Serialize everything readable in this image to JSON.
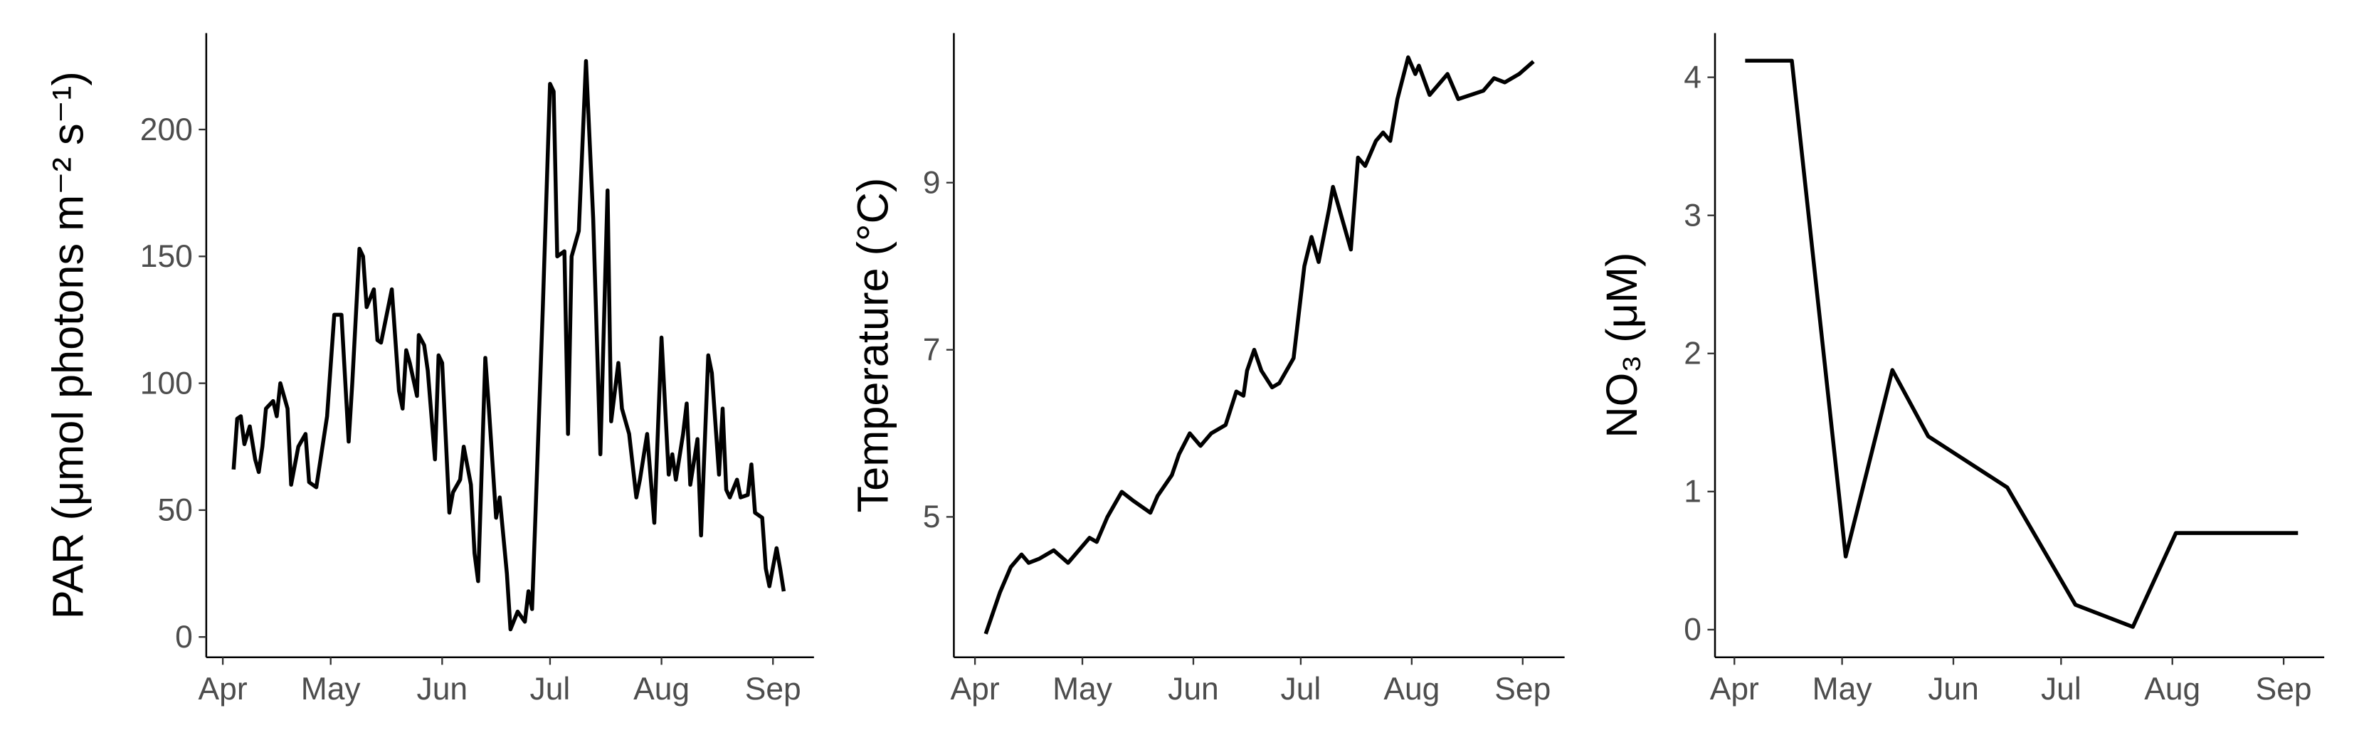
{
  "chart_data": [
    {
      "type": "line",
      "y_label": "PAR (μmol photons m⁻² s⁻¹)",
      "color": "#000000",
      "x": [
        3,
        4,
        5,
        6,
        7.5,
        9,
        10,
        11,
        12,
        14,
        15,
        16,
        18,
        19,
        21,
        23,
        24,
        26,
        29,
        31,
        33,
        35,
        36,
        38,
        39,
        40,
        42,
        43,
        44,
        46,
        47,
        49,
        50,
        51,
        52,
        54,
        54.5,
        56,
        57,
        59,
        60,
        61,
        63,
        64,
        66,
        67,
        69,
        70,
        71,
        73,
        74,
        76,
        77,
        79,
        80,
        82,
        84,
        85,
        86,
        87,
        89,
        91,
        92,
        93,
        95,
        96,
        97,
        99,
        101,
        103,
        105,
        107,
        108,
        110,
        111,
        113,
        115,
        116,
        118,
        120,
        122,
        124,
        125,
        126,
        128,
        129,
        130,
        132,
        133,
        135,
        136,
        138,
        139,
        140,
        141,
        143,
        144,
        146,
        147,
        148,
        150,
        151,
        152,
        154,
        155,
        156
      ],
      "values": [
        66,
        86,
        87,
        76,
        83,
        70,
        65,
        75,
        90,
        93,
        87,
        100,
        90,
        60,
        75,
        80,
        61,
        59,
        87,
        127,
        127,
        77,
        100,
        153,
        150,
        130,
        137,
        117,
        116,
        130,
        137,
        97,
        90,
        113,
        108,
        95,
        119,
        115,
        105,
        70,
        111,
        108,
        49,
        57,
        62,
        75,
        60,
        33,
        22,
        110,
        90,
        47,
        55,
        25,
        3,
        10,
        6,
        18,
        11,
        50,
        130,
        218,
        215,
        150,
        152,
        80,
        150,
        160,
        227,
        165,
        72,
        176,
        85,
        108,
        90,
        80,
        55,
        62,
        80,
        45,
        118,
        64,
        72,
        62,
        80,
        92,
        60,
        78,
        40,
        111,
        104,
        64,
        90,
        58,
        55,
        62,
        55,
        56,
        68,
        49,
        47,
        27,
        20,
        35,
        27,
        18
      ],
      "xlim": [
        -4.6,
        164.4
      ],
      "xticks": [
        {
          "value": 0,
          "label": "Apr"
        },
        {
          "value": 30,
          "label": "May"
        },
        {
          "value": 61,
          "label": "Jun"
        },
        {
          "value": 91,
          "label": "Jul"
        },
        {
          "value": 122,
          "label": "Aug"
        },
        {
          "value": 153,
          "label": "Sep"
        }
      ],
      "ylim": [
        -8,
        238
      ],
      "yticks": [
        0,
        50,
        100,
        150,
        200
      ]
    },
    {
      "type": "line",
      "y_label": "Temperature (°C)",
      "color": "#000000",
      "x": [
        3,
        7,
        10,
        13,
        15,
        18,
        22,
        26,
        29,
        32,
        34,
        37,
        41,
        44,
        49,
        51,
        55,
        57,
        60,
        63,
        66,
        70,
        73,
        75,
        76,
        78,
        80,
        83,
        85,
        89,
        92,
        94,
        96,
        99,
        100,
        102,
        105,
        107,
        109,
        112,
        114,
        116,
        118,
        121,
        123,
        124,
        127,
        130,
        132,
        135,
        142,
        145,
        148,
        152,
        156
      ],
      "values": [
        3.6,
        4.1,
        4.4,
        4.55,
        4.45,
        4.5,
        4.6,
        4.45,
        4.6,
        4.75,
        4.7,
        5.0,
        5.3,
        5.2,
        5.05,
        5.25,
        5.5,
        5.75,
        6.0,
        5.85,
        6.0,
        6.1,
        6.5,
        6.45,
        6.75,
        7.0,
        6.75,
        6.55,
        6.6,
        6.9,
        8.0,
        8.35,
        8.05,
        8.7,
        8.95,
        8.65,
        8.2,
        9.3,
        9.2,
        9.5,
        9.6,
        9.5,
        10.0,
        10.5,
        10.3,
        10.4,
        10.05,
        10.2,
        10.3,
        10.0,
        10.1,
        10.25,
        10.2,
        10.3,
        10.45
      ],
      "xlim": [
        -5.9,
        164.7
      ],
      "xticks": [
        {
          "value": 0,
          "label": "Apr"
        },
        {
          "value": 30,
          "label": "May"
        },
        {
          "value": 61,
          "label": "Jun"
        },
        {
          "value": 91,
          "label": "Jul"
        },
        {
          "value": 122,
          "label": "Aug"
        },
        {
          "value": 153,
          "label": "Sep"
        }
      ],
      "ylim": [
        3.32,
        10.79
      ],
      "yticks": [
        5,
        7,
        9
      ]
    },
    {
      "type": "line",
      "y_label": "NO₃ (μM)",
      "color": "#000000",
      "x": [
        3,
        16,
        31,
        44,
        54,
        76,
        95,
        111,
        123,
        157
      ],
      "values": [
        4.12,
        4.12,
        0.53,
        1.88,
        1.4,
        1.03,
        0.18,
        0.02,
        0.7,
        0.7
      ],
      "xlim": [
        -5.4,
        164.3
      ],
      "xticks": [
        {
          "value": 0,
          "label": "Apr"
        },
        {
          "value": 30,
          "label": "May"
        },
        {
          "value": 61,
          "label": "Jun"
        },
        {
          "value": 91,
          "label": "Jul"
        },
        {
          "value": 122,
          "label": "Aug"
        },
        {
          "value": 153,
          "label": "Sep"
        }
      ],
      "ylim": [
        -0.2,
        4.32
      ],
      "yticks": [
        0,
        1,
        2,
        3,
        4
      ]
    }
  ]
}
